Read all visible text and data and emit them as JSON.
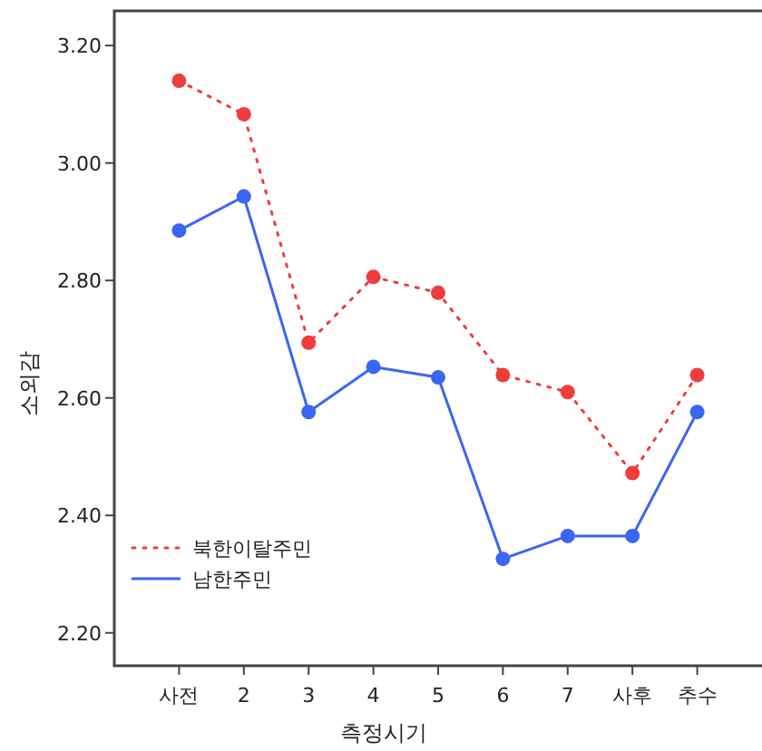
{
  "chart_data": {
    "type": "line",
    "xlabel": "측정시기",
    "ylabel": "소외감",
    "categories": [
      "사전",
      "2",
      "3",
      "4",
      "5",
      "6",
      "7",
      "사후",
      "추수"
    ],
    "series": [
      {
        "name": "북한이탈주민",
        "color": "#f03c3c",
        "line_style": "dotted",
        "values": [
          3.14,
          3.083,
          2.694,
          2.806,
          2.779,
          2.639,
          2.61,
          2.472,
          2.639
        ]
      },
      {
        "name": "남한주민",
        "color": "#3a66f5",
        "line_style": "solid",
        "values": [
          2.885,
          2.943,
          2.576,
          2.653,
          2.635,
          2.326,
          2.365,
          2.365,
          2.576
        ]
      }
    ],
    "ylim": [
      2.144,
      3.259
    ],
    "yticks": [
      {
        "value": 2.2,
        "label": "2.20"
      },
      {
        "value": 2.4,
        "label": "2.40"
      },
      {
        "value": 2.6,
        "label": "2.60"
      },
      {
        "value": 2.8,
        "label": "2.80"
      },
      {
        "value": 3.0,
        "label": "3.00"
      },
      {
        "value": 3.2,
        "label": "3.20"
      }
    ],
    "marker": "circle",
    "grid": false,
    "legend": "bottom left"
  }
}
